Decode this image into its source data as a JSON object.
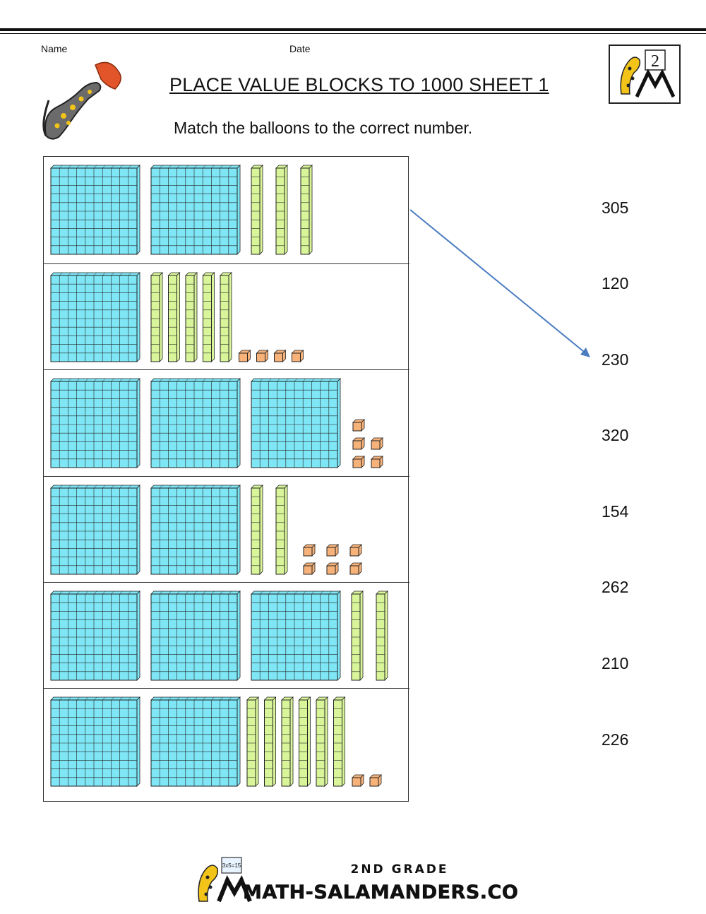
{
  "header": {
    "name_label": "Name",
    "date_label": "Date",
    "title": "PLACE VALUE BLOCKS TO 1000 SHEET 1",
    "instruction": "Match the balloons to the correct number.",
    "logo_badge": "2"
  },
  "rows": [
    {
      "hundreds": 2,
      "tens": 3,
      "ones": 0
    },
    {
      "hundreds": 1,
      "tens": 5,
      "ones": 4
    },
    {
      "hundreds": 3,
      "tens": 0,
      "ones": 5
    },
    {
      "hundreds": 2,
      "tens": 2,
      "ones": 6
    },
    {
      "hundreds": 3,
      "tens": 2,
      "ones": 0
    },
    {
      "hundreds": 2,
      "tens": 6,
      "ones": 2
    }
  ],
  "answers": [
    "305",
    "120",
    "230",
    "320",
    "154",
    "262",
    "210",
    "226"
  ],
  "example": {
    "from_row": 1,
    "to_answer": "230"
  },
  "footer": {
    "grade": "2ND GRADE",
    "brand": "MATH-SALAMANDERS.COM",
    "board_text": "3x5=15"
  },
  "colors": {
    "hundred_block": "#7fe6f5",
    "ten_rod": "#d9f59a",
    "one_cube": "#f7b27a",
    "arrow": "#4a7cc0"
  }
}
